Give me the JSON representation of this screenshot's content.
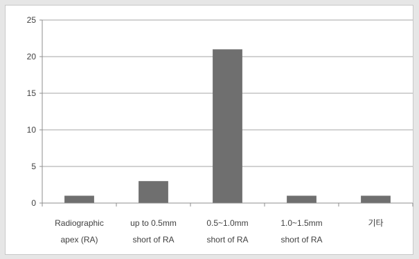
{
  "chart_data": {
    "type": "bar",
    "categories": [
      [
        "Radiographic",
        "apex (RA)"
      ],
      [
        "up to 0.5mm",
        "short of RA"
      ],
      [
        "0.5~1.0mm",
        "short of RA"
      ],
      [
        "1.0~1.5mm",
        "short of RA"
      ],
      [
        "기타"
      ]
    ],
    "values": [
      1,
      3,
      21,
      1,
      1
    ],
    "ylim": [
      0,
      25
    ],
    "yticks": [
      0,
      5,
      10,
      15,
      20,
      25
    ],
    "title": "",
    "xlabel": "",
    "ylabel": "",
    "grid": true,
    "legend": "none",
    "colors": {
      "bar": "#6f6f6f",
      "grid": "#a6a6a6",
      "axis": "#8c8c8c",
      "background": "#e6e6e6",
      "plot": "#ffffff"
    }
  }
}
